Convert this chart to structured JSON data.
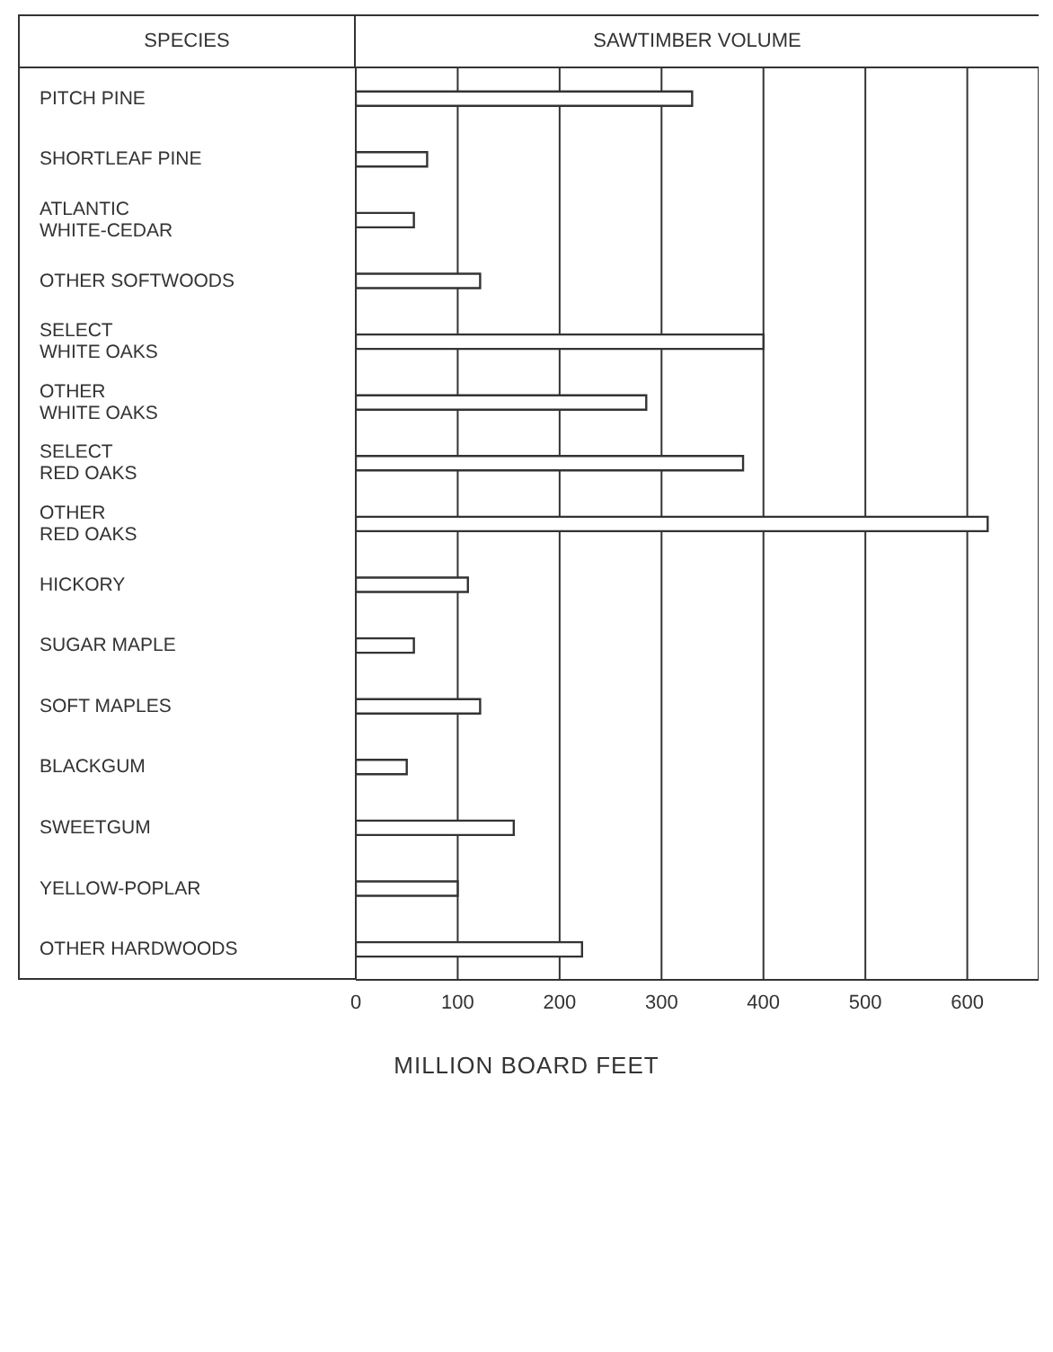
{
  "chart_data": {
    "type": "bar",
    "orientation": "horizontal",
    "title": "SAWTIMBER VOLUME",
    "ylabel": "SPECIES",
    "xlabel": "MILLION BOARD FEET",
    "categories": [
      "PITCH PINE",
      "SHORTLEAF PINE",
      "ATLANTIC\nWHITE-CEDAR",
      "OTHER SOFTWOODS",
      "SELECT\nWHITE OAKS",
      "OTHER\nWHITE OAKS",
      "SELECT\nRED OAKS",
      "OTHER\nRED OAKS",
      "HICKORY",
      "SUGAR MAPLE",
      "SOFT MAPLES",
      "BLACKGUM",
      "SWEETGUM",
      "YELLOW-POPLAR",
      "OTHER HARDWOODS"
    ],
    "values": [
      330,
      70,
      57,
      122,
      400,
      285,
      380,
      620,
      110,
      57,
      122,
      50,
      155,
      100,
      222
    ],
    "color": "#ffffff",
    "xlim": [
      0,
      670
    ],
    "xticks": [
      0,
      100,
      200,
      300,
      400,
      500,
      600
    ],
    "grid": "x"
  }
}
